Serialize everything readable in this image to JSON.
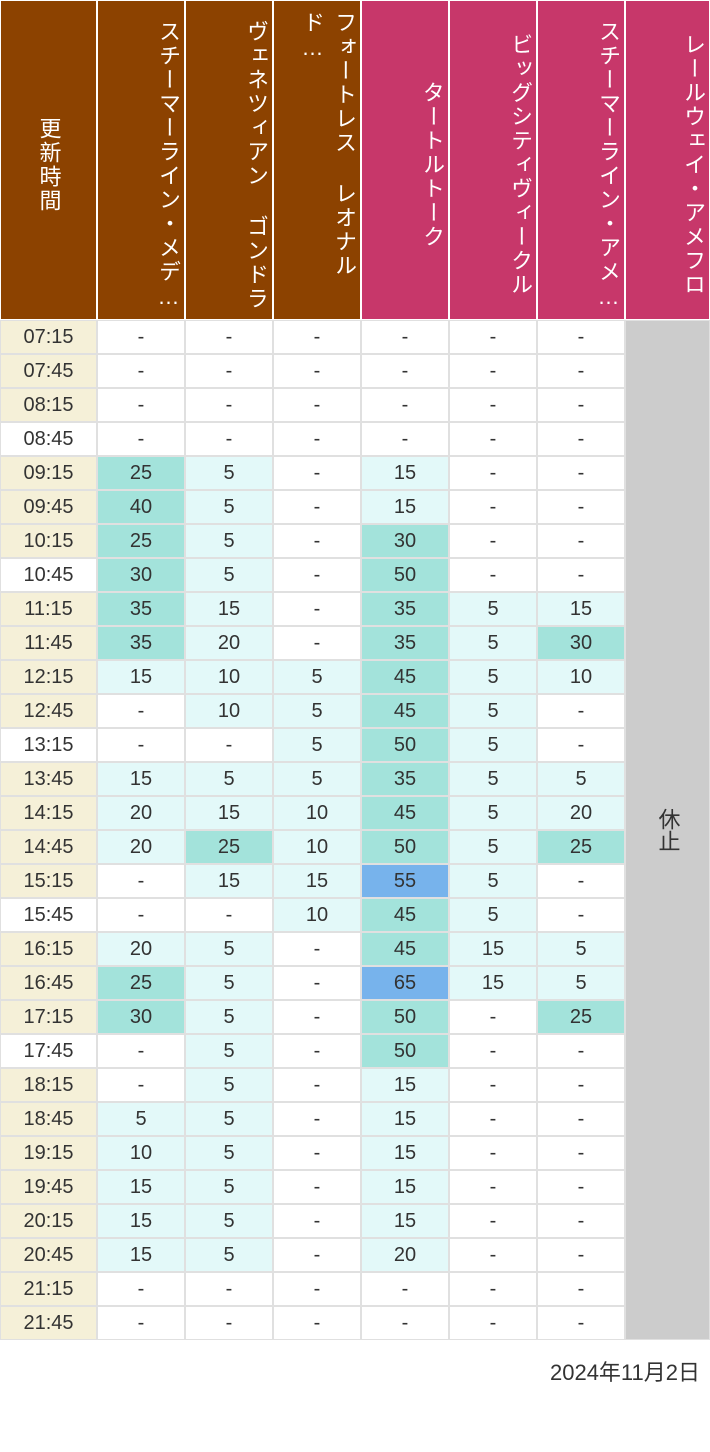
{
  "colors": {
    "brown_header": "#8C4200",
    "pink_header": "#C7376A",
    "time_bg_alt": "#F5F0D8",
    "white": "#ffffff",
    "closed_bg": "#cccccc",
    "wait_0": "#ffffff",
    "wait_1": "#E3F9F9",
    "wait_2": "#A3E3DB",
    "wait_3": "#77B3EC"
  },
  "headers": {
    "time": "更新時間",
    "col1": "スチーマーライン・メデ…",
    "col2": "ヴェネツィアン ゴンドラ",
    "col3": "フォートレス レオナルド…",
    "col4": "タートルトーク",
    "col5": "ビッグシティヴィークル",
    "col6": "スチーマーライン・アメ…",
    "col7": "レールウェイ・アメフロ"
  },
  "closed_text": "休止",
  "footer_date": "2024年11月2日",
  "times": [
    "07:15",
    "07:45",
    "08:15",
    "08:45",
    "09:15",
    "09:45",
    "10:15",
    "10:45",
    "11:15",
    "11:45",
    "12:15",
    "12:45",
    "13:15",
    "13:45",
    "14:15",
    "14:45",
    "15:15",
    "15:45",
    "16:15",
    "16:45",
    "17:15",
    "17:45",
    "18:15",
    "18:45",
    "19:15",
    "19:45",
    "20:15",
    "20:45",
    "21:15",
    "21:45"
  ],
  "data": {
    "col1": [
      "-",
      "-",
      "-",
      "-",
      "25",
      "40",
      "25",
      "30",
      "35",
      "35",
      "15",
      "-",
      "-",
      "15",
      "20",
      "20",
      "-",
      "-",
      "20",
      "25",
      "30",
      "-",
      "-",
      "5",
      "10",
      "15",
      "15",
      "15",
      "-",
      "-"
    ],
    "col2": [
      "-",
      "-",
      "-",
      "-",
      "5",
      "5",
      "5",
      "5",
      "15",
      "20",
      "10",
      "10",
      "-",
      "5",
      "15",
      "25",
      "15",
      "-",
      "5",
      "5",
      "5",
      "5",
      "5",
      "5",
      "5",
      "5",
      "5",
      "5",
      "-",
      "-"
    ],
    "col3": [
      "-",
      "-",
      "-",
      "-",
      "-",
      "-",
      "-",
      "-",
      "-",
      "-",
      "5",
      "5",
      "5",
      "5",
      "10",
      "10",
      "15",
      "10",
      "-",
      "-",
      "-",
      "-",
      "-",
      "-",
      "-",
      "-",
      "-",
      "-",
      "-",
      "-"
    ],
    "col4": [
      "-",
      "-",
      "-",
      "-",
      "15",
      "15",
      "30",
      "50",
      "35",
      "35",
      "45",
      "45",
      "50",
      "35",
      "45",
      "50",
      "55",
      "45",
      "45",
      "65",
      "50",
      "50",
      "15",
      "15",
      "15",
      "15",
      "15",
      "20",
      "-",
      "-"
    ],
    "col5": [
      "-",
      "-",
      "-",
      "-",
      "-",
      "-",
      "-",
      "-",
      "5",
      "5",
      "5",
      "5",
      "5",
      "5",
      "5",
      "5",
      "5",
      "5",
      "15",
      "15",
      "-",
      "-",
      "-",
      "-",
      "-",
      "-",
      "-",
      "-",
      "-",
      "-"
    ],
    "col6": [
      "-",
      "-",
      "-",
      "-",
      "-",
      "-",
      "-",
      "-",
      "15",
      "30",
      "10",
      "-",
      "-",
      "5",
      "20",
      "25",
      "-",
      "-",
      "5",
      "5",
      "25",
      "-",
      "-",
      "-",
      "-",
      "-",
      "-",
      "-",
      "-",
      "-"
    ]
  },
  "wait_thresholds": {
    "level0_max": 0,
    "level1_max": 20,
    "level2_max": 50,
    "level3_max": 999
  }
}
